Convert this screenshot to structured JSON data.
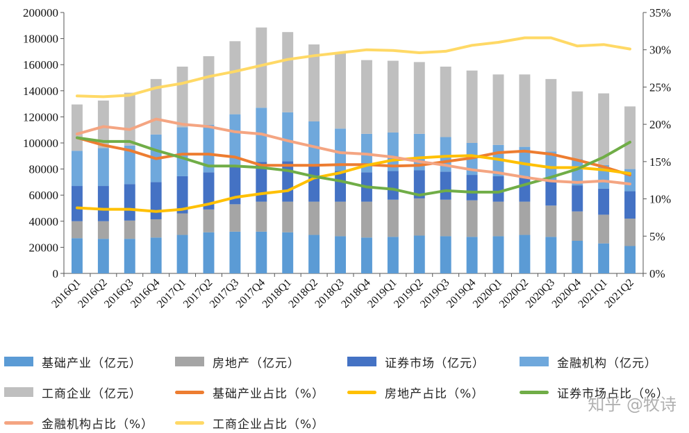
{
  "chart_data": {
    "type": "bar+line",
    "stacked": true,
    "categories": [
      "2016Q1",
      "2016Q2",
      "2016Q3",
      "2016Q4",
      "2017Q1",
      "2017Q2",
      "2017Q3",
      "2017Q4",
      "2018Q1",
      "2018Q2",
      "2018Q3",
      "2018Q4",
      "2019Q1",
      "2019Q2",
      "2019Q3",
      "2019Q4",
      "2020Q1",
      "2020Q2",
      "2020Q3",
      "2020Q4",
      "2021Q1",
      "2021Q2"
    ],
    "ylim_left": [
      0,
      200000
    ],
    "yticks_left": [
      "0",
      "20000",
      "40000",
      "60000",
      "80000",
      "100000",
      "120000",
      "140000",
      "160000",
      "180000",
      "200000"
    ],
    "ylim_right": [
      0,
      35
    ],
    "yticks_right": [
      "0%",
      "5%",
      "10%",
      "15%",
      "20%",
      "25%",
      "30%",
      "35%"
    ],
    "grid": false,
    "bar_series": [
      {
        "name": "基础产业（亿元）",
        "color": "#5b9bd5",
        "values": [
          27000,
          26500,
          26500,
          27500,
          29500,
          31500,
          32000,
          32000,
          31500,
          29500,
          28500,
          27500,
          28000,
          29000,
          28500,
          28000,
          28500,
          29500,
          28000,
          25000,
          23000,
          21000
        ]
      },
      {
        "name": "房地产（亿元）",
        "color": "#a5a5a5",
        "values": [
          13000,
          13500,
          14000,
          14000,
          16500,
          17500,
          21000,
          23000,
          23500,
          25500,
          26500,
          27500,
          28500,
          28500,
          28000,
          28000,
          26500,
          25500,
          24000,
          22500,
          22000,
          21000
        ]
      },
      {
        "name": "证券市场（亿元）",
        "color": "#4472c4",
        "values": [
          27000,
          27000,
          28000,
          28500,
          28500,
          28500,
          29000,
          30500,
          31000,
          27000,
          23500,
          22500,
          22000,
          21500,
          21500,
          19500,
          19500,
          19500,
          20000,
          20000,
          20000,
          21000
        ]
      },
      {
        "name": "金融机构（亿元）",
        "color": "#6fa8dc",
        "values": [
          27000,
          29000,
          29500,
          36500,
          37500,
          36500,
          40000,
          41500,
          37500,
          34500,
          32500,
          29500,
          29500,
          28000,
          26500,
          24500,
          24000,
          22500,
          21500,
          20000,
          18000,
          17000
        ]
      },
      {
        "name": "工商企业（亿元）",
        "color": "#bfbfbf",
        "values": [
          35500,
          36500,
          40500,
          42500,
          46500,
          52500,
          56000,
          61500,
          61500,
          59000,
          58500,
          56500,
          55000,
          55000,
          54000,
          55500,
          54000,
          55500,
          55500,
          52000,
          55000,
          48000
        ]
      }
    ],
    "line_series": [
      {
        "name": "基础产业占比（%）",
        "color": "#ed7d31",
        "values": [
          18.2,
          17.2,
          16.5,
          15.4,
          16.0,
          16.0,
          15.6,
          14.5,
          14.5,
          14.5,
          14.6,
          14.6,
          14.4,
          14.5,
          15.0,
          15.5,
          16.2,
          16.4,
          16.0,
          15.2,
          14.3,
          13.2
        ]
      },
      {
        "name": "房地产占比（%）",
        "color": "#ffc000",
        "values": [
          8.8,
          8.6,
          8.6,
          8.3,
          8.6,
          9.3,
          10.2,
          10.7,
          11.1,
          12.8,
          13.5,
          14.5,
          15.2,
          15.5,
          15.7,
          15.8,
          15.3,
          14.7,
          14.2,
          14.2,
          13.9,
          13.4
        ]
      },
      {
        "name": "证券市场占比（%）",
        "color": "#70ad47",
        "values": [
          18.2,
          17.7,
          17.7,
          16.5,
          15.5,
          14.4,
          14.4,
          14.2,
          13.8,
          13.0,
          12.4,
          11.6,
          11.3,
          10.5,
          11.1,
          10.9,
          10.9,
          11.9,
          12.9,
          14.0,
          15.6,
          17.6
        ]
      },
      {
        "name": "金融机构占比（%）",
        "color": "#f4a582",
        "values": [
          18.7,
          19.7,
          19.3,
          20.7,
          20.0,
          19.7,
          19.0,
          18.7,
          17.8,
          17.0,
          16.2,
          16.0,
          15.6,
          15.0,
          14.5,
          13.9,
          13.5,
          12.9,
          12.4,
          12.2,
          12.4,
          12.0
        ]
      },
      {
        "name": "工商企业占比（%）",
        "color": "#ffd966",
        "values": [
          23.8,
          23.7,
          23.9,
          24.9,
          25.5,
          26.4,
          27.1,
          27.9,
          28.7,
          29.2,
          29.6,
          30.0,
          29.9,
          29.6,
          29.8,
          30.6,
          31.0,
          31.6,
          31.6,
          30.5,
          30.7,
          30.1
        ]
      }
    ]
  },
  "legend": {
    "items": [
      {
        "label": "基础产业（亿元）",
        "kind": "bar",
        "color": "#5b9bd5"
      },
      {
        "label": "房地产（亿元）",
        "kind": "bar",
        "color": "#a5a5a5"
      },
      {
        "label": "证券市场（亿元）",
        "kind": "bar",
        "color": "#4472c4"
      },
      {
        "label": "金融机构（亿元）",
        "kind": "bar",
        "color": "#6fa8dc"
      },
      {
        "label": "工商企业（亿元）",
        "kind": "bar",
        "color": "#bfbfbf"
      },
      {
        "label": "基础产业占比（%）",
        "kind": "line",
        "color": "#ed7d31"
      },
      {
        "label": "房地产占比（%）",
        "kind": "line",
        "color": "#ffc000"
      },
      {
        "label": "证券市场占比（%）",
        "kind": "line",
        "color": "#70ad47"
      },
      {
        "label": "金融机构占比（%）",
        "kind": "line",
        "color": "#f4a582"
      },
      {
        "label": "工商企业占比（%）",
        "kind": "line",
        "color": "#ffd966"
      }
    ]
  },
  "watermark": "知乎 @牧诗"
}
